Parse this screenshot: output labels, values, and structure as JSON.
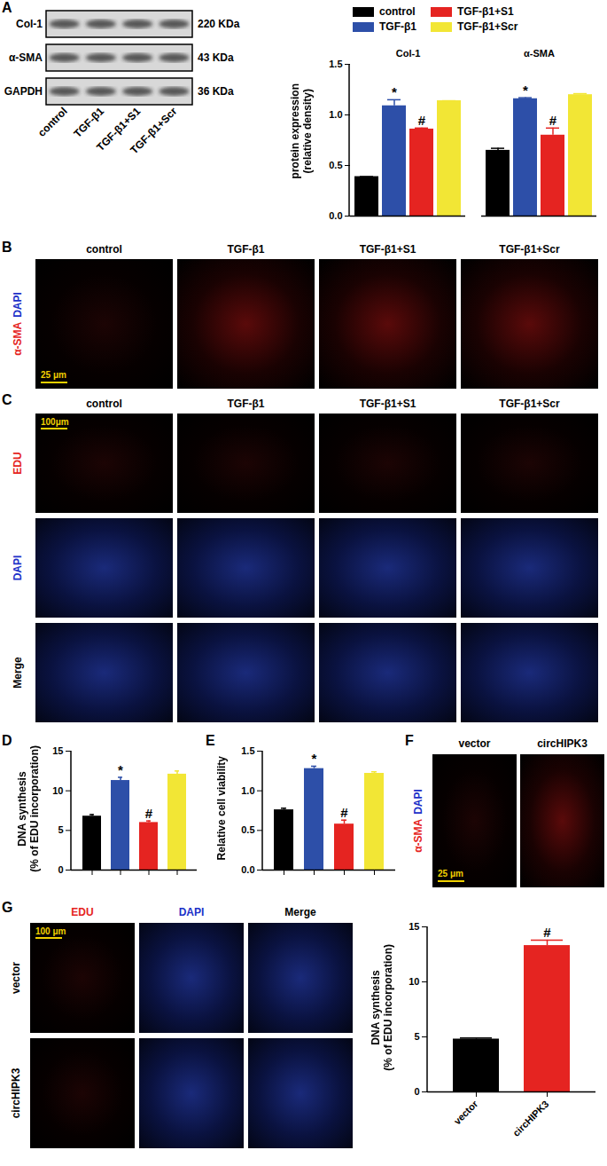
{
  "chart_data": [
    {
      "type": "bar",
      "categories": [
        "Col-1",
        "α-SMA"
      ],
      "ylabel": "protein expression\n(relative density)",
      "ylim": [
        0,
        1.5
      ],
      "yticks": [
        {
          "value": 0,
          "label": "0.0"
        },
        0.5,
        {
          "value": 1,
          "label": "1.0"
        },
        1.5
      ],
      "legend": "top",
      "series": [
        {
          "name": "control",
          "color": "#000000",
          "values": [
            0.39,
            0.65
          ],
          "errors": [
            0,
            0.02
          ]
        },
        {
          "name": "TGF-β1",
          "color": "#2d4fa8",
          "values": [
            1.09,
            1.16
          ],
          "errors": [
            0.06,
            0.01
          ]
        },
        {
          "name": "TGF-β1+S1",
          "color": "#e52421",
          "values": [
            0.86,
            0.8
          ],
          "errors": [
            0.01,
            0.07
          ]
        },
        {
          "name": "TGF-β1+Scr",
          "color": "#f2e635",
          "values": [
            1.14,
            1.2
          ],
          "errors": [
            0,
            0.01
          ]
        }
      ],
      "annotations": [
        {
          "category": "Col-1",
          "series": "TGF-β1",
          "text": "*"
        },
        {
          "category": "α-SMA",
          "series": "TGF-β1",
          "text": "*"
        },
        {
          "category": "Col-1",
          "series": "TGF-β1+S1",
          "text": "#"
        },
        {
          "category": "α-SMA",
          "series": "TGF-β1+S1",
          "text": "#"
        }
      ]
    },
    {
      "type": "bar",
      "categories": [
        null,
        null,
        null,
        null
      ],
      "ylabel": "DNA synthesis\n(% of EDU incorporation)",
      "values": [
        6.8,
        11.3,
        6.0,
        12.1
      ],
      "errors": [
        0.2,
        0.4,
        0.2,
        0.4
      ],
      "colors": [
        "#000000",
        "#2d4fa8",
        "#e52421",
        "#f2e635"
      ],
      "ylim": [
        0,
        15
      ],
      "yticks": [
        0,
        5,
        10,
        15
      ],
      "annotations": [
        {
          "index": 1,
          "text": "*"
        },
        {
          "index": 2,
          "text": "#"
        }
      ]
    },
    {
      "type": "bar",
      "categories": [
        null,
        null,
        null,
        null
      ],
      "ylabel": "Relative cell viability",
      "values": [
        0.76,
        1.28,
        0.58,
        1.22
      ],
      "errors": [
        0.02,
        0.03,
        0.05,
        0.02
      ],
      "colors": [
        "#000000",
        "#2d4fa8",
        "#e52421",
        "#f2e635"
      ],
      "ylim": [
        0,
        1.5
      ],
      "yticks": [
        {
          "value": 0,
          "label": "0.0"
        },
        0.5,
        {
          "value": 1,
          "label": "1.0"
        },
        1.5
      ],
      "annotations": [
        {
          "index": 1,
          "text": "*"
        },
        {
          "index": 2,
          "text": "#"
        }
      ]
    },
    {
      "type": "bar",
      "categories": [
        "vector",
        "circHIPK3"
      ],
      "ylabel": "DNA synthesis\n(% of EDU incorporation)",
      "values": [
        4.8,
        13.3
      ],
      "errors": [
        0.1,
        0.5
      ],
      "colors": [
        "#000000",
        "#e52421"
      ],
      "ylim": [
        0,
        15
      ],
      "yticks": [
        0,
        5,
        10,
        15
      ],
      "annotations": [
        {
          "index": 1,
          "text": "#"
        }
      ]
    }
  ],
  "figure": {
    "panel_labels": [
      "A",
      "B",
      "C",
      "D",
      "E",
      "F",
      "G"
    ],
    "blot": {
      "rows": [
        {
          "label": "Col-1",
          "size": "220 KDa"
        },
        {
          "label": "α-SMA",
          "size": "43 KDa"
        },
        {
          "label": "GAPDH",
          "size": "36 KDa"
        }
      ],
      "lanes": [
        "control",
        "TGF-β1",
        "TGF-β1+S1",
        "TGF-β1+Scr"
      ]
    },
    "images_B": {
      "columns": [
        "control",
        "TGF-β1",
        "TGF-β1+S1",
        "TGF-β1+Scr"
      ],
      "stain": [
        {
          "text": "α-SMA",
          "color": "#e52421"
        },
        {
          "text": "DAPI",
          "color": "#2030c8"
        }
      ],
      "scale_bar": "25 μm"
    },
    "images_C": {
      "columns": [
        "control",
        "TGF-β1",
        "TGF-β1+S1",
        "TGF-β1+Scr"
      ],
      "rows": [
        {
          "text": "EDU",
          "color": "#e52421"
        },
        {
          "text": "DAPI",
          "color": "#2030c8"
        },
        {
          "text": "Merge",
          "color": "#000000"
        }
      ],
      "scale_bar": "100μm"
    },
    "images_F": {
      "columns": [
        "vector",
        "circHIPK3"
      ],
      "stain": [
        {
          "text": "α-SMA",
          "color": "#e52421"
        },
        {
          "text": "DAPI",
          "color": "#2030c8"
        }
      ],
      "scale_bar": "25 μm"
    },
    "images_G": {
      "columns": [
        {
          "text": "EDU",
          "color": "#e52421"
        },
        {
          "text": "DAPI",
          "color": "#2030c8"
        },
        {
          "text": "Merge",
          "color": "#000000"
        }
      ],
      "rows": [
        "vector",
        "circHIPK3"
      ],
      "scale_bar": "100 μm"
    }
  }
}
